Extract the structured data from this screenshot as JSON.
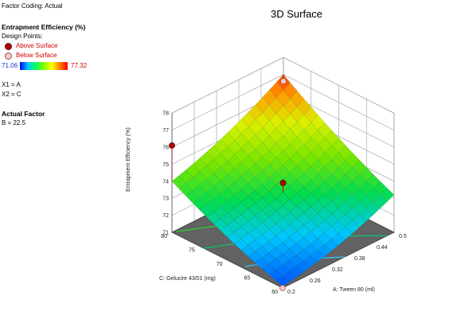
{
  "panel": {
    "factor_coding": "Factor Coding: Actual",
    "response_title": "Entrapment Efficiency (%)",
    "design_points": "Design Points:",
    "above": "Above Surface",
    "below": "Below Surface",
    "scale_min": "71.06",
    "scale_max": "77.32",
    "x1": "X1 = A",
    "x2": "X2 = C",
    "actual_factor_title": "Actual Factor",
    "actual_factor_value": "B = 22.5"
  },
  "chart_data": {
    "type": "surface3d",
    "title": "3D Surface",
    "zlabel": "Entrapment Efficiency (%)",
    "xlabel": "A: Tween 80 (ml)",
    "ylabel": "C: Gelucire 43/01 (mg)",
    "x_ticks": [
      "0.2",
      "0.26",
      "0.32",
      "0.38",
      "0.44",
      "0.5"
    ],
    "y_ticks": [
      "60",
      "65",
      "70",
      "75",
      "80"
    ],
    "z_ticks": [
      "71",
      "72",
      "73",
      "74",
      "75",
      "76",
      "77",
      "78"
    ],
    "xlim": [
      0.2,
      0.5
    ],
    "ylim": [
      60,
      80
    ],
    "zlim": [
      71,
      78
    ],
    "surface_corners": {
      "A_0.2_C_80": 74.0,
      "A_0.5_C_80": 77.0,
      "A_0.2_C_60": 71.1,
      "A_0.5_C_60": 73.2
    },
    "surface_min": 71.06,
    "surface_max": 77.32,
    "design_points": [
      {
        "A": 0.2,
        "C": 80,
        "z": 76.1,
        "position": "above"
      },
      {
        "A": 0.5,
        "C": 80,
        "z": 76.6,
        "position": "below"
      },
      {
        "A": 0.35,
        "C": 70,
        "z": 73.9,
        "position": "above"
      },
      {
        "A": 0.2,
        "C": 60,
        "z": 71.0,
        "position": "below"
      }
    ],
    "colors": {
      "floor": "#626262",
      "grid": "#9a9a9a",
      "axes": "#555555"
    }
  }
}
